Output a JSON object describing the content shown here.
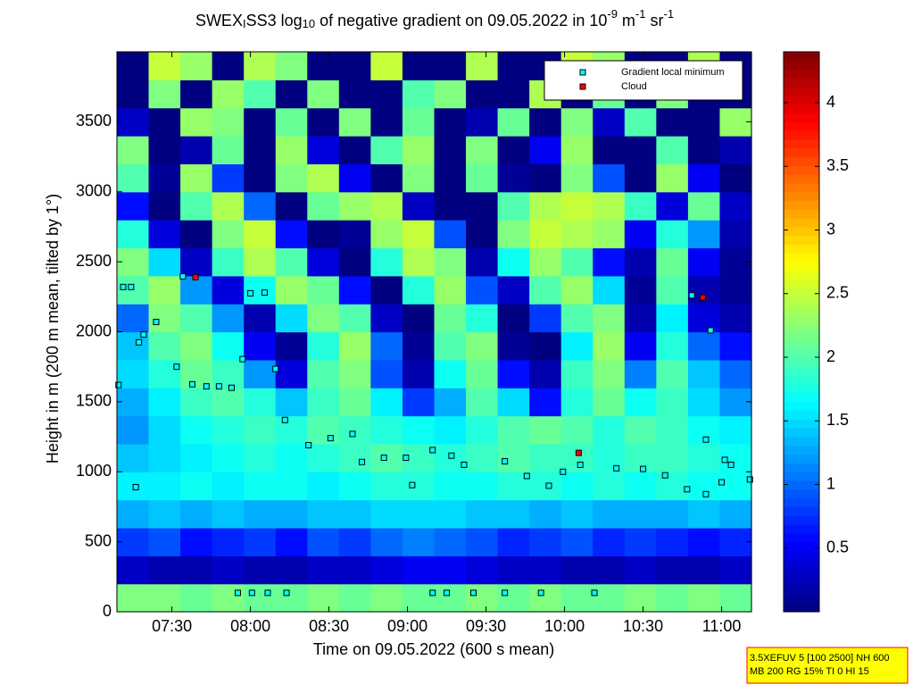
{
  "chart_data": {
    "type": "heatmap",
    "title_parts": [
      {
        "text": "SWEX"
      },
      {
        "text": "I",
        "script": "sub"
      },
      {
        "text": "SS3 log"
      },
      {
        "text": "10",
        "script": "sub"
      },
      {
        "text": " of negative gradient on 09.05.2022 in 10"
      },
      {
        "text": "-9",
        "script": "super"
      },
      {
        "text": " m"
      },
      {
        "text": "-1",
        "script": "super"
      },
      {
        "text": " sr"
      },
      {
        "text": "-1",
        "script": "super"
      }
    ],
    "xlabel": "Time on 09.05.2022 (600 s mean)",
    "ylabel": "Height in m (200 m mean, tilted by 1°)",
    "xlim": [
      7.15,
      11.19
    ],
    "xticks": [
      {
        "value": 7.5,
        "label": "07:30"
      },
      {
        "value": 8,
        "label": "08:00"
      },
      {
        "value": 8.5,
        "label": "08:30"
      },
      {
        "value": 9,
        "label": "09:00"
      },
      {
        "value": 9.5,
        "label": "09:30"
      },
      {
        "value": 10,
        "label": "10:00"
      },
      {
        "value": 10.5,
        "label": "10:30"
      },
      {
        "value": 11,
        "label": "11:00"
      }
    ],
    "ylim": [
      0,
      4000
    ],
    "yticks": [
      0,
      500,
      1000,
      1500,
      2000,
      2500,
      3000,
      3500
    ],
    "colormap": "jet",
    "clim": [
      0,
      4.4
    ],
    "cticks": [
      0.5,
      1,
      1.5,
      2,
      2.5,
      3,
      3.5,
      4
    ],
    "z": [
      [
        2.2,
        2.2,
        2.1,
        2.2,
        2.1,
        2.1,
        2.2,
        2.1,
        2.2,
        2.1,
        2.1,
        2.2,
        2.1,
        2.2,
        2.1,
        2.1,
        2.2,
        2.1,
        2.2,
        2.1
      ],
      [
        0.3,
        0.2,
        0.2,
        0.3,
        0.2,
        0.2,
        0.3,
        0.3,
        0.4,
        0.5,
        0.5,
        0.4,
        0.3,
        0.3,
        0.2,
        0.2,
        0.3,
        0.2,
        0.2,
        0.3
      ],
      [
        0.8,
        0.9,
        0.6,
        0.7,
        0.8,
        0.6,
        0.9,
        0.8,
        1.0,
        1.1,
        1.0,
        0.9,
        0.7,
        0.8,
        0.9,
        0.7,
        0.8,
        0.7,
        0.6,
        0.7
      ],
      [
        1.3,
        1.4,
        1.3,
        1.4,
        1.3,
        1.3,
        1.4,
        1.4,
        1.5,
        1.5,
        1.5,
        1.4,
        1.4,
        1.3,
        1.4,
        1.3,
        1.3,
        1.3,
        1.4,
        1.3
      ],
      [
        1.6,
        1.6,
        1.7,
        1.6,
        1.7,
        1.7,
        1.6,
        1.7,
        1.8,
        1.8,
        1.7,
        1.7,
        1.8,
        1.8,
        1.7,
        1.8,
        1.7,
        1.8,
        1.7,
        1.7
      ],
      [
        1.4,
        1.5,
        1.6,
        1.7,
        1.8,
        1.7,
        1.8,
        1.9,
        2.0,
        1.9,
        1.8,
        1.9,
        2.0,
        1.9,
        1.9,
        1.8,
        1.9,
        1.9,
        1.8,
        1.7
      ],
      [
        1.2,
        1.5,
        1.7,
        1.8,
        1.9,
        1.8,
        2.0,
        1.9,
        1.8,
        1.7,
        1.6,
        1.8,
        2.0,
        2.1,
        2.0,
        1.8,
        2.0,
        1.9,
        1.7,
        1.6
      ],
      [
        1.3,
        1.6,
        1.9,
        2.0,
        1.8,
        1.4,
        1.9,
        2.1,
        1.6,
        0.8,
        1.3,
        2.0,
        1.5,
        0.6,
        1.8,
        2.1,
        1.7,
        1.9,
        1.5,
        1.2
      ],
      [
        1.5,
        1.8,
        2.1,
        1.9,
        1.2,
        0.4,
        2.0,
        2.2,
        0.9,
        0.2,
        1.7,
        2.1,
        0.6,
        0.2,
        1.9,
        2.2,
        1.1,
        2.0,
        1.4,
        1.0
      ],
      [
        1.4,
        2.0,
        2.2,
        1.7,
        0.5,
        0.1,
        1.8,
        2.3,
        1.0,
        0.1,
        2.0,
        2.2,
        0.1,
        0.0,
        1.6,
        2.3,
        0.5,
        1.8,
        1.0,
        0.6
      ],
      [
        1.0,
        2.2,
        2.0,
        1.2,
        0.2,
        1.5,
        2.2,
        2.0,
        0.3,
        0.0,
        2.1,
        1.8,
        0.0,
        0.8,
        2.0,
        2.2,
        0.2,
        1.6,
        0.4,
        0.2
      ],
      [
        2.0,
        2.3,
        1.2,
        0.4,
        1.7,
        2.3,
        2.1,
        0.6,
        0.0,
        1.8,
        2.3,
        0.9,
        0.3,
        2.0,
        2.3,
        1.5,
        0.1,
        2.0,
        0.2,
        0.1
      ],
      [
        2.2,
        1.5,
        0.3,
        1.9,
        2.4,
        2.0,
        0.4,
        0.0,
        1.8,
        2.4,
        2.2,
        0.2,
        1.7,
        2.3,
        2.0,
        0.6,
        0.2,
        2.1,
        0.5,
        0.1
      ],
      [
        1.8,
        0.4,
        0.0,
        2.2,
        2.5,
        0.6,
        0.0,
        0.1,
        2.3,
        2.5,
        0.9,
        0.0,
        2.2,
        2.5,
        2.4,
        2.3,
        0.5,
        1.8,
        1.2,
        0.2
      ],
      [
        0.6,
        0.0,
        2.0,
        2.4,
        1.0,
        0.0,
        2.1,
        2.3,
        2.4,
        0.3,
        0.0,
        0.0,
        2.0,
        2.4,
        2.5,
        2.4,
        1.9,
        0.4,
        2.1,
        0.3
      ],
      [
        2.0,
        0.1,
        2.3,
        0.8,
        0.0,
        2.2,
        2.4,
        0.5,
        0.0,
        2.2,
        0.0,
        2.1,
        0.1,
        0.0,
        2.2,
        0.9,
        0.0,
        2.3,
        0.5,
        0.0
      ],
      [
        2.2,
        0.0,
        0.2,
        2.1,
        0.0,
        2.3,
        0.4,
        0.0,
        2.0,
        2.3,
        0.0,
        2.2,
        0.0,
        0.5,
        2.3,
        0.0,
        0.0,
        2.0,
        0.0,
        0.2
      ],
      [
        0.3,
        0.0,
        2.3,
        2.2,
        0.0,
        2.1,
        0.0,
        2.2,
        0.0,
        2.1,
        0.0,
        0.2,
        2.1,
        0.0,
        2.2,
        0.3,
        2.0,
        0.0,
        0.0,
        2.3
      ],
      [
        0.0,
        2.2,
        0.0,
        2.3,
        2.0,
        0.0,
        2.2,
        0.0,
        0.0,
        2.0,
        2.2,
        0.0,
        0.0,
        2.4,
        0.0,
        2.1,
        0.0,
        2.2,
        0.0,
        0.0
      ],
      [
        0.0,
        2.5,
        2.3,
        0.0,
        2.4,
        2.2,
        0.0,
        0.0,
        2.5,
        0.0,
        0.0,
        2.4,
        0.0,
        0.0,
        2.5,
        2.3,
        0.0,
        0.0,
        2.4,
        0.0
      ]
    ],
    "series": [
      {
        "name": "Gradient local minimum",
        "color": "#00ffff",
        "edge": "#000000",
        "x": [
          7.16,
          7.19,
          7.24,
          7.27,
          7.29,
          7.32,
          7.4,
          7.53,
          7.57,
          7.63,
          7.72,
          7.8,
          7.88,
          7.95,
          8.0,
          8.09,
          8.16,
          8.22,
          8.37,
          8.51,
          8.65,
          8.71,
          8.85,
          8.99,
          9.03,
          9.16,
          9.28,
          9.36,
          9.62,
          9.76,
          9.9,
          9.99,
          10.1,
          10.33,
          10.5,
          10.64,
          10.78,
          10.9,
          11.0,
          11.02,
          11.06,
          10.81,
          10.93,
          10.9,
          11.18,
          7.92,
          8.01,
          8.11,
          8.23,
          9.16,
          9.25,
          9.42,
          9.62,
          9.85,
          10.19
        ],
        "y": [
          1620,
          2320,
          2320,
          890,
          1925,
          1980,
          2070,
          1750,
          2396,
          1625,
          1610,
          1610,
          1600,
          1805,
          2275,
          2280,
          1735,
          1370,
          1190,
          1240,
          1270,
          1070,
          1100,
          1100,
          905,
          1155,
          1115,
          1050,
          1075,
          970,
          900,
          1000,
          1050,
          1025,
          1020,
          975,
          875,
          840,
          925,
          1085,
          1050,
          2260,
          2010,
          1230,
          945,
          135,
          135,
          135,
          135,
          135,
          135,
          135,
          135,
          135,
          135
        ]
      },
      {
        "name": "Cloud",
        "color": "#ff0000",
        "edge": "#000000",
        "x": [
          7.65,
          10.09,
          10.88
        ],
        "y": [
          2390,
          1135,
          2245
        ]
      }
    ],
    "legend": "upper right",
    "info": [
      "3.5XEFUV 5 [100 2500] NH 600",
      "MB 200 RG 15% TI 0 HI 15"
    ]
  }
}
